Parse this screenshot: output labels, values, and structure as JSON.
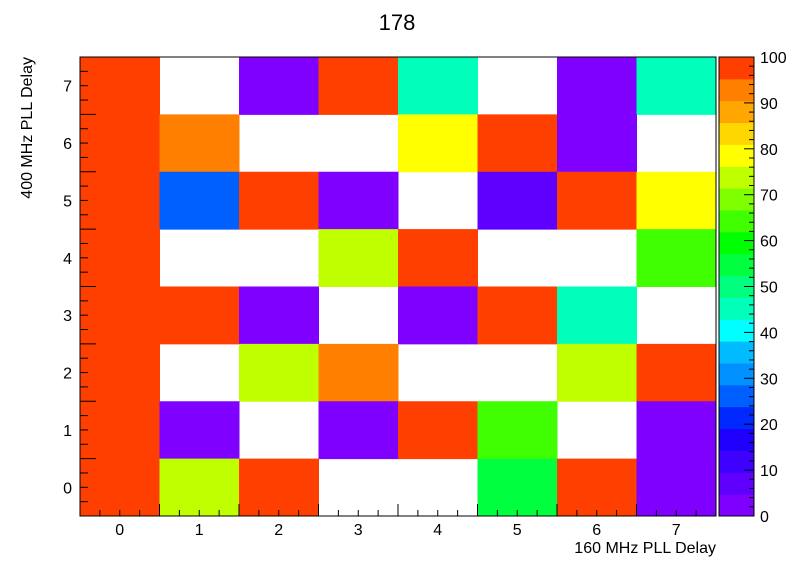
{
  "chart_data": {
    "type": "heatmap",
    "title": "178",
    "xlabel": "160 MHz PLL Delay",
    "ylabel": "400 MHz PLL Delay",
    "x_categories": [
      "0",
      "1",
      "2",
      "3",
      "4",
      "5",
      "6",
      "7"
    ],
    "y_categories": [
      "0",
      "1",
      "2",
      "3",
      "4",
      "5",
      "6",
      "7"
    ],
    "zlim": [
      0,
      100
    ],
    "colorbar_ticks": [
      "0",
      "10",
      "20",
      "30",
      "40",
      "50",
      "60",
      "70",
      "80",
      "90",
      "100"
    ],
    "rows_from_top_y7_to_y0": [
      [
        100,
        null,
        3,
        100,
        43,
        null,
        3,
        43
      ],
      [
        100,
        95,
        null,
        null,
        78,
        100,
        3,
        null
      ],
      [
        100,
        27,
        100,
        3,
        null,
        8,
        100,
        78
      ],
      [
        100,
        null,
        null,
        72,
        100,
        null,
        null,
        65
      ],
      [
        100,
        100,
        3,
        null,
        3,
        100,
        43,
        null
      ],
      [
        100,
        null,
        72,
        95,
        null,
        null,
        72,
        100
      ],
      [
        100,
        3,
        null,
        3,
        100,
        65,
        null,
        3
      ],
      [
        100,
        72,
        100,
        null,
        null,
        53,
        100,
        3
      ]
    ]
  }
}
